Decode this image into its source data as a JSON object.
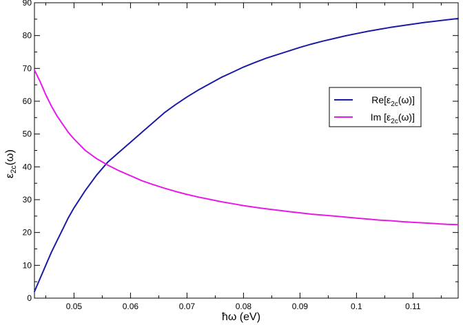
{
  "chart_data": {
    "type": "line",
    "xlabel": {
      "prefix": "ħω",
      "suffix": " (eV)"
    },
    "ylabel": {
      "base": "ε",
      "sub": "2c",
      "tail": "(ω)"
    },
    "xlim": [
      0.043,
      0.118
    ],
    "ylim": [
      0,
      90
    ],
    "x_ticks": [
      0.05,
      0.06,
      0.07,
      0.08,
      0.09,
      0.1,
      0.11
    ],
    "x_tick_labels": [
      "0.05",
      "0.06",
      "0.07",
      "0.08",
      "0.09",
      "0.1",
      "0.11"
    ],
    "y_ticks": [
      0,
      10,
      20,
      30,
      40,
      50,
      60,
      70,
      80,
      90
    ],
    "y_tick_labels": [
      "0",
      "10",
      "20",
      "30",
      "40",
      "50",
      "60",
      "70",
      "80",
      "90"
    ],
    "grid": false,
    "legend_position": "right",
    "series": [
      {
        "name": "Re[ε2c(ω)]",
        "legend": {
          "pre": "Re[ε",
          "sub": "2c",
          "post": "(ω)]"
        },
        "color": "#1a1aa6",
        "x": [
          0.043,
          0.044,
          0.045,
          0.046,
          0.047,
          0.048,
          0.049,
          0.05,
          0.052,
          0.054,
          0.056,
          0.058,
          0.06,
          0.062,
          0.064,
          0.066,
          0.068,
          0.07,
          0.072,
          0.074,
          0.076,
          0.078,
          0.08,
          0.082,
          0.084,
          0.086,
          0.088,
          0.09,
          0.092,
          0.094,
          0.096,
          0.098,
          0.1,
          0.102,
          0.104,
          0.106,
          0.108,
          0.11,
          0.112,
          0.114,
          0.116,
          0.118
        ],
        "y": [
          2,
          6,
          10,
          14,
          17.5,
          21,
          24.5,
          27.5,
          32.8,
          37.5,
          41.5,
          44.5,
          47.5,
          50.5,
          53.5,
          56.5,
          59,
          61.3,
          63.4,
          65.3,
          67.2,
          68.8,
          70.4,
          71.8,
          73.1,
          74.2,
          75.3,
          76.4,
          77.4,
          78.3,
          79.1,
          79.9,
          80.6,
          81.3,
          81.9,
          82.5,
          83.0,
          83.5,
          84.0,
          84.4,
          84.8,
          85.2
        ]
      },
      {
        "name": "Im [ε2c(ω)]",
        "legend": {
          "pre": "Im [ε",
          "sub": "2c",
          "post": "(ω)]"
        },
        "color": "#e619e6",
        "x": [
          0.043,
          0.044,
          0.045,
          0.046,
          0.047,
          0.048,
          0.049,
          0.05,
          0.052,
          0.054,
          0.056,
          0.058,
          0.06,
          0.062,
          0.064,
          0.066,
          0.068,
          0.07,
          0.072,
          0.074,
          0.076,
          0.078,
          0.08,
          0.082,
          0.084,
          0.086,
          0.088,
          0.09,
          0.092,
          0.094,
          0.096,
          0.098,
          0.1,
          0.102,
          0.104,
          0.106,
          0.108,
          0.11,
          0.112,
          0.114,
          0.116,
          0.118
        ],
        "y": [
          69.5,
          66,
          62,
          58.5,
          55.5,
          53,
          50.5,
          48.5,
          45,
          42.5,
          40.5,
          38.8,
          37.3,
          35.8,
          34.6,
          33.5,
          32.5,
          31.6,
          30.8,
          30.1,
          29.4,
          28.8,
          28.2,
          27.7,
          27.2,
          26.8,
          26.4,
          26.0,
          25.6,
          25.3,
          25.0,
          24.7,
          24.4,
          24.1,
          23.8,
          23.6,
          23.3,
          23.1,
          22.9,
          22.7,
          22.5,
          22.4
        ]
      }
    ]
  }
}
